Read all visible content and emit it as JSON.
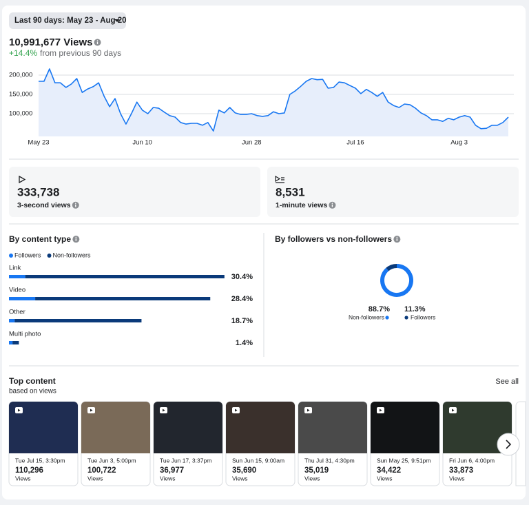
{
  "date_range": "Last 90 days: May 23 - Aug 20",
  "summary": {
    "views": "10,991,677 Views",
    "change": "+14.4%",
    "change_text": "from previous 90 days"
  },
  "chart_data": [
    {
      "type": "line",
      "color": "#1877f2",
      "grid": true,
      "values": [
        184000,
        184000,
        216000,
        180000,
        180000,
        168000,
        177000,
        191000,
        155000,
        164000,
        170000,
        180000,
        145000,
        118000,
        139000,
        100000,
        73000,
        100000,
        130000,
        109000,
        100000,
        116000,
        114000,
        104000,
        95000,
        91000,
        77000,
        73000,
        75000,
        75000,
        70000,
        77000,
        55000,
        109000,
        102000,
        116000,
        102000,
        98000,
        98000,
        100000,
        95000,
        93000,
        95000,
        105000,
        100000,
        102000,
        150000,
        159000,
        171000,
        184000,
        191000,
        188000,
        189000,
        166000,
        168000,
        182000,
        180000,
        173000,
        166000,
        152000,
        163000,
        155000,
        145000,
        155000,
        130000,
        121000,
        116000,
        125000,
        123000,
        114000,
        102000,
        95000,
        84000,
        84000,
        80000,
        88000,
        84000,
        91000,
        95000,
        91000,
        70000,
        61000,
        62000,
        70000,
        70000,
        77000,
        91000
      ],
      "xlim": [
        0,
        86
      ],
      "ylim": [
        41000,
        225000
      ],
      "xticks": [
        {
          "value": 0,
          "label": "May 23"
        },
        {
          "value": 19,
          "label": "Jun 10"
        },
        {
          "value": 39,
          "label": "Jun 28"
        },
        {
          "value": 58,
          "label": "Jul 16"
        },
        {
          "value": 77,
          "label": "Aug 3"
        }
      ],
      "yticks": [
        {
          "value": 100000,
          "label": "100,000"
        },
        {
          "value": 150000,
          "label": "150,000"
        },
        {
          "value": 200000,
          "label": "200,000"
        }
      ]
    },
    {
      "type": "bar",
      "title": "By content type",
      "orientation": "horizontal",
      "stacked": true,
      "categories": [
        "Link",
        "Video",
        "Other",
        "Multi photo"
      ],
      "series": [
        {
          "name": "Followers",
          "color": "#1877f2",
          "values": [
            2.3,
            3.7,
            0.8,
            0.5
          ]
        },
        {
          "name": "Non-followers",
          "color": "#0a3a7a",
          "values": [
            28.1,
            24.7,
            17.9,
            0.9
          ]
        }
      ],
      "totals": [
        30.4,
        28.4,
        18.7,
        1.4
      ],
      "total_labels": [
        "30.4%",
        "28.4%",
        "18.7%",
        "1.4%"
      ],
      "xlim": [
        0,
        31
      ]
    },
    {
      "type": "donut",
      "title": "By followers vs non-followers",
      "categories": [
        "Non-followers",
        "Followers"
      ],
      "values": [
        88.7,
        11.3
      ],
      "value_labels": [
        "88.7%",
        "11.3%"
      ],
      "colors": [
        "#1877f2",
        "#0a3a7a"
      ]
    }
  ],
  "stats": [
    {
      "value": "333,738",
      "label": "3-second views"
    },
    {
      "value": "8,531",
      "label": "1-minute views"
    }
  ],
  "top_content": {
    "title": "Top content",
    "subtitle": "based on views",
    "link": "See all",
    "items": [
      {
        "date": "Tue Jul 15, 3:30pm",
        "views": "110,296",
        "unit": "Views"
      },
      {
        "date": "Tue Jun 3, 5:00pm",
        "views": "100,722",
        "unit": "Views"
      },
      {
        "date": "Tue Jun 17, 3:37pm",
        "views": "36,977",
        "unit": "Views"
      },
      {
        "date": "Sun Jun 15, 9:00am",
        "views": "35,690",
        "unit": "Views"
      },
      {
        "date": "Thu Jul 31, 4:30pm",
        "views": "35,019",
        "unit": "Views"
      },
      {
        "date": "Sun May 25, 9:51pm",
        "views": "34,422",
        "unit": "Views"
      },
      {
        "date": "Fri Jun 6, 4:00pm",
        "views": "33,873",
        "unit": "Views"
      }
    ]
  }
}
